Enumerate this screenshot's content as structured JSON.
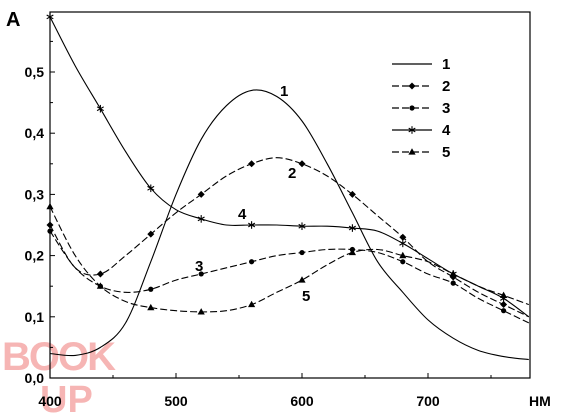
{
  "chart_data": {
    "type": "line",
    "ylabel": "A",
    "xunit": "НМ",
    "xlim": [
      400,
      780
    ],
    "ylim": [
      0,
      0.6
    ],
    "xticks": [
      400,
      500,
      600,
      700
    ],
    "xtick_labels": [
      "400",
      "500",
      "600",
      "700"
    ],
    "yticks": [
      0,
      0.1,
      0.2,
      0.3,
      0.4,
      0.5
    ],
    "ytick_labels": [
      "0,0",
      "0,1",
      "0,2",
      "0,3",
      "0,4",
      "0,5"
    ],
    "grid": false,
    "legend_position": "top-right",
    "series": [
      {
        "name": "1",
        "marker": "none",
        "dash": "solid",
        "x": [
          400,
          420,
          440,
          460,
          480,
          500,
          520,
          540,
          560,
          580,
          600,
          620,
          640,
          660,
          680,
          700,
          720,
          740,
          760,
          780
        ],
        "y": [
          0.04,
          0.037,
          0.05,
          0.09,
          0.19,
          0.3,
          0.39,
          0.445,
          0.47,
          0.46,
          0.42,
          0.35,
          0.27,
          0.19,
          0.14,
          0.095,
          0.065,
          0.045,
          0.035,
          0.03
        ]
      },
      {
        "name": "2",
        "marker": "diamond",
        "dash": "dashed",
        "x": [
          400,
          420,
          440,
          460,
          480,
          500,
          520,
          540,
          560,
          580,
          600,
          620,
          640,
          660,
          680,
          700,
          720,
          740,
          760,
          780
        ],
        "y": [
          0.25,
          0.18,
          0.17,
          0.2,
          0.235,
          0.27,
          0.3,
          0.33,
          0.35,
          0.36,
          0.35,
          0.33,
          0.3,
          0.265,
          0.23,
          0.19,
          0.165,
          0.14,
          0.12,
          0.1
        ]
      },
      {
        "name": "3",
        "marker": "circle",
        "dash": "dashed",
        "x": [
          400,
          420,
          440,
          460,
          480,
          500,
          520,
          540,
          560,
          580,
          600,
          620,
          640,
          660,
          680,
          700,
          720,
          740,
          760,
          780
        ],
        "y": [
          0.24,
          0.18,
          0.15,
          0.14,
          0.145,
          0.16,
          0.17,
          0.18,
          0.19,
          0.2,
          0.205,
          0.21,
          0.21,
          0.205,
          0.19,
          0.17,
          0.155,
          0.13,
          0.11,
          0.09
        ]
      },
      {
        "name": "4",
        "marker": "star",
        "dash": "solid",
        "x": [
          400,
          420,
          440,
          460,
          480,
          500,
          520,
          540,
          560,
          580,
          600,
          620,
          640,
          660,
          680,
          700,
          720,
          740,
          760,
          780
        ],
        "y": [
          0.59,
          0.51,
          0.44,
          0.37,
          0.31,
          0.275,
          0.26,
          0.25,
          0.25,
          0.25,
          0.248,
          0.248,
          0.245,
          0.24,
          0.22,
          0.195,
          0.17,
          0.15,
          0.13,
          0.1
        ]
      },
      {
        "name": "5",
        "marker": "triangle",
        "dash": "dashed",
        "x": [
          400,
          420,
          440,
          460,
          480,
          500,
          520,
          540,
          560,
          580,
          600,
          620,
          640,
          660,
          680,
          700,
          720,
          740,
          760,
          780
        ],
        "y": [
          0.28,
          0.2,
          0.15,
          0.125,
          0.115,
          0.11,
          0.108,
          0.11,
          0.12,
          0.14,
          0.16,
          0.185,
          0.205,
          0.21,
          0.2,
          0.19,
          0.17,
          0.15,
          0.135,
          0.12
        ]
      }
    ]
  },
  "watermark": {
    "text_top": "BOOK",
    "text_bottom": "UP",
    "color": "#f07a78"
  }
}
